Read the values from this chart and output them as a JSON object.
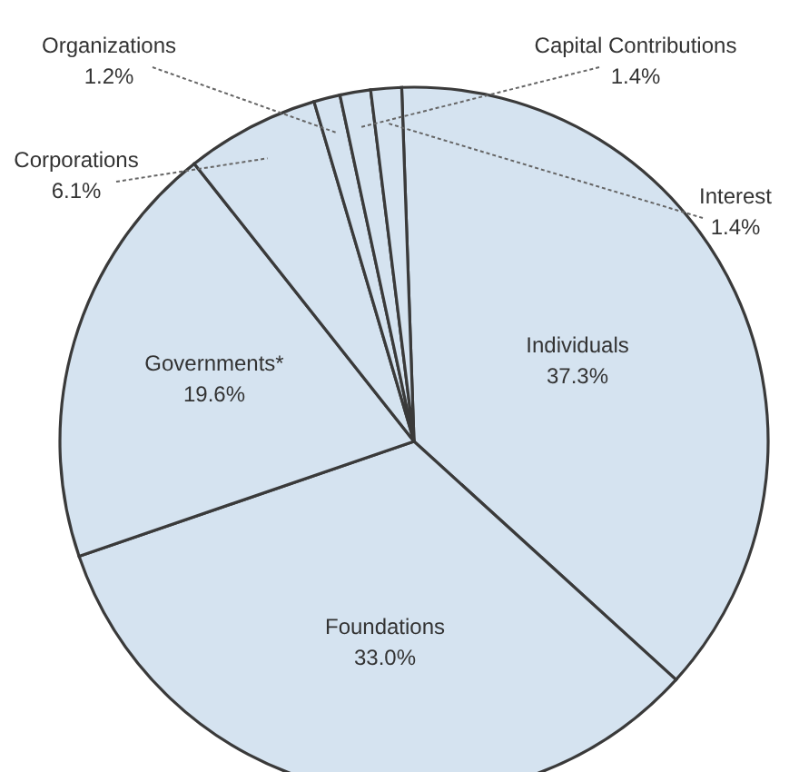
{
  "chart_data": {
    "type": "pie",
    "categories": [
      "Individuals",
      "Foundations",
      "Governments*",
      "Corporations",
      "Organizations",
      "Capital Contributions",
      "Interest"
    ],
    "values": [
      37.3,
      33.0,
      19.6,
      6.1,
      1.2,
      1.4,
      1.4
    ],
    "value_labels": [
      "37.3%",
      "33.0%",
      "19.6%",
      "6.1%",
      "1.2%",
      "1.4%",
      "1.4%"
    ],
    "colors": [
      "#d5e3f0",
      "#d5e3f0",
      "#d5e3f0",
      "#d5e3f0",
      "#d5e3f0",
      "#d5e3f0",
      "#d5e3f0"
    ]
  }
}
